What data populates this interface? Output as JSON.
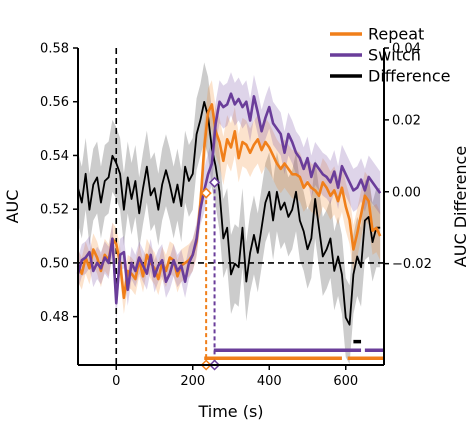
{
  "chart_data": {
    "type": "line",
    "xlabel": "Time (s)",
    "ylabel": "AUC",
    "ylabel_right": "AUC Difference",
    "xlim": [
      -100,
      700
    ],
    "ylim": [
      0.462,
      0.58
    ],
    "ylim_right": [
      -0.0482,
      0.04
    ],
    "x_ticks": [
      0,
      200,
      400,
      600
    ],
    "y_ticks": [
      0.48,
      0.5,
      0.52,
      0.54,
      0.56,
      0.58
    ],
    "y_ticks_right": [
      -0.02,
      0.0,
      0.02,
      0.04
    ],
    "x_tick_labels": [
      "0",
      "200",
      "400",
      "600"
    ],
    "y_tick_labels": [
      "0.48",
      "0.50",
      "0.52",
      "0.54",
      "0.56",
      "0.58"
    ],
    "y_tick_labels_right": [
      "−0.02",
      "0.00",
      "0.02",
      "0.04"
    ],
    "grid": false,
    "legend_position": "top-right",
    "reference_lines": {
      "chance_y": 0.5,
      "stimulus_onset_x": 0
    },
    "series": [
      {
        "name": "Repeat",
        "axis": "left",
        "color": "#f07f1a",
        "x": [
          -100,
          -90,
          -80,
          -70,
          -60,
          -50,
          -40,
          -30,
          -20,
          -10,
          0,
          10,
          20,
          30,
          40,
          50,
          60,
          70,
          80,
          90,
          100,
          110,
          120,
          130,
          140,
          150,
          160,
          170,
          180,
          190,
          200,
          210,
          220,
          230,
          240,
          250,
          260,
          270,
          280,
          290,
          300,
          310,
          320,
          330,
          340,
          350,
          360,
          370,
          380,
          390,
          400,
          410,
          420,
          430,
          440,
          450,
          460,
          470,
          480,
          490,
          500,
          510,
          520,
          530,
          540,
          550,
          560,
          570,
          580,
          590,
          600,
          610,
          620,
          630,
          640,
          650,
          660,
          670,
          680,
          690
        ],
        "y": [
          0.499,
          0.496,
          0.502,
          0.498,
          0.505,
          0.502,
          0.497,
          0.503,
          0.501,
          0.509,
          0.507,
          0.5,
          0.487,
          0.497,
          0.496,
          0.494,
          0.501,
          0.495,
          0.503,
          0.5,
          0.498,
          0.494,
          0.5,
          0.497,
          0.502,
          0.501,
          0.495,
          0.499,
          0.5,
          0.501,
          0.503,
          0.508,
          0.522,
          0.543,
          0.556,
          0.559,
          0.549,
          0.545,
          0.538,
          0.546,
          0.543,
          0.549,
          0.539,
          0.545,
          0.544,
          0.541,
          0.544,
          0.546,
          0.542,
          0.545,
          0.543,
          0.54,
          0.537,
          0.535,
          0.537,
          0.535,
          0.533,
          0.533,
          0.532,
          0.528,
          0.53,
          0.528,
          0.527,
          0.525,
          0.53,
          0.528,
          0.525,
          0.527,
          0.523,
          0.528,
          0.521,
          0.516,
          0.505,
          0.511,
          0.518,
          0.525,
          0.523,
          0.512,
          0.513,
          0.51
        ],
        "band_halfwidth": [
          0.006,
          0.006,
          0.006,
          0.006,
          0.006,
          0.006,
          0.006,
          0.006,
          0.006,
          0.006,
          0.006,
          0.006,
          0.006,
          0.006,
          0.006,
          0.006,
          0.006,
          0.006,
          0.006,
          0.006,
          0.006,
          0.006,
          0.006,
          0.006,
          0.006,
          0.006,
          0.006,
          0.006,
          0.006,
          0.006,
          0.006,
          0.006,
          0.006,
          0.009,
          0.009,
          0.009,
          0.009,
          0.009,
          0.009,
          0.009,
          0.009,
          0.009,
          0.009,
          0.009,
          0.009,
          0.009,
          0.009,
          0.009,
          0.009,
          0.009,
          0.009,
          0.009,
          0.009,
          0.009,
          0.009,
          0.009,
          0.009,
          0.009,
          0.009,
          0.009,
          0.009,
          0.009,
          0.009,
          0.009,
          0.009,
          0.009,
          0.009,
          0.009,
          0.009,
          0.009,
          0.009,
          0.009,
          0.009,
          0.009,
          0.009,
          0.009,
          0.009,
          0.009,
          0.009,
          0.009
        ]
      },
      {
        "name": "Switch",
        "axis": "left",
        "color": "#6a3d9a",
        "x": [
          -100,
          -90,
          -80,
          -70,
          -60,
          -50,
          -40,
          -30,
          -20,
          -10,
          0,
          10,
          20,
          30,
          40,
          50,
          60,
          70,
          80,
          90,
          100,
          110,
          120,
          130,
          140,
          150,
          160,
          170,
          180,
          190,
          200,
          210,
          220,
          230,
          240,
          250,
          260,
          270,
          280,
          290,
          300,
          310,
          320,
          330,
          340,
          350,
          360,
          370,
          380,
          390,
          400,
          410,
          420,
          430,
          440,
          450,
          460,
          470,
          480,
          490,
          500,
          510,
          520,
          530,
          540,
          550,
          560,
          570,
          580,
          590,
          600,
          610,
          620,
          630,
          640,
          650,
          660,
          670,
          680,
          690
        ],
        "y": [
          0.496,
          0.501,
          0.502,
          0.504,
          0.497,
          0.5,
          0.498,
          0.502,
          0.5,
          0.509,
          0.485,
          0.503,
          0.504,
          0.49,
          0.5,
          0.497,
          0.502,
          0.499,
          0.496,
          0.503,
          0.495,
          0.499,
          0.501,
          0.493,
          0.496,
          0.501,
          0.497,
          0.499,
          0.493,
          0.5,
          0.503,
          0.509,
          0.52,
          0.527,
          0.533,
          0.537,
          0.552,
          0.56,
          0.558,
          0.559,
          0.563,
          0.559,
          0.561,
          0.558,
          0.56,
          0.553,
          0.562,
          0.556,
          0.549,
          0.554,
          0.558,
          0.552,
          0.55,
          0.548,
          0.541,
          0.548,
          0.545,
          0.541,
          0.539,
          0.535,
          0.539,
          0.532,
          0.537,
          0.535,
          0.533,
          0.532,
          0.53,
          0.534,
          0.528,
          0.536,
          0.533,
          0.53,
          0.527,
          0.528,
          0.531,
          0.527,
          0.532,
          0.53,
          0.528,
          0.526
        ],
        "band_halfwidth": [
          0.006,
          0.006,
          0.006,
          0.006,
          0.006,
          0.006,
          0.006,
          0.006,
          0.006,
          0.006,
          0.006,
          0.006,
          0.006,
          0.006,
          0.006,
          0.006,
          0.006,
          0.006,
          0.006,
          0.006,
          0.006,
          0.006,
          0.006,
          0.006,
          0.006,
          0.006,
          0.006,
          0.006,
          0.006,
          0.006,
          0.006,
          0.006,
          0.006,
          0.008,
          0.008,
          0.008,
          0.008,
          0.008,
          0.008,
          0.008,
          0.008,
          0.008,
          0.008,
          0.008,
          0.008,
          0.008,
          0.008,
          0.008,
          0.008,
          0.008,
          0.008,
          0.008,
          0.008,
          0.008,
          0.008,
          0.008,
          0.008,
          0.008,
          0.008,
          0.008,
          0.008,
          0.008,
          0.008,
          0.008,
          0.008,
          0.008,
          0.008,
          0.008,
          0.008,
          0.008,
          0.008,
          0.008,
          0.008,
          0.008,
          0.008,
          0.008,
          0.008,
          0.008,
          0.008,
          0.008
        ]
      },
      {
        "name": "Difference",
        "axis": "right",
        "color": "#000000",
        "x": [
          -100,
          -90,
          -80,
          -70,
          -60,
          -50,
          -40,
          -30,
          -20,
          -10,
          0,
          10,
          20,
          30,
          40,
          50,
          60,
          70,
          80,
          90,
          100,
          110,
          120,
          130,
          140,
          150,
          160,
          170,
          180,
          190,
          200,
          210,
          220,
          230,
          240,
          250,
          260,
          270,
          280,
          290,
          300,
          310,
          320,
          330,
          340,
          350,
          360,
          370,
          380,
          390,
          400,
          410,
          420,
          430,
          440,
          450,
          460,
          470,
          480,
          490,
          500,
          510,
          520,
          530,
          540,
          550,
          560,
          570,
          580,
          590,
          600,
          610,
          620,
          630,
          640,
          650,
          660,
          670,
          680,
          690
        ],
        "y": [
          0.001,
          -0.003,
          0.005,
          -0.005,
          0.002,
          0.004,
          -0.003,
          0.003,
          0.004,
          0.01,
          0.008,
          0.005,
          -0.005,
          0.004,
          -0.002,
          0.003,
          -0.006,
          0.001,
          0.007,
          -0.001,
          0.001,
          -0.005,
          0.002,
          0.006,
          0.002,
          -0.003,
          0.002,
          -0.004,
          0.007,
          0.003,
          0.005,
          0.016,
          0.02,
          0.025,
          0.021,
          0.012,
          0.007,
          0.0,
          -0.013,
          -0.01,
          -0.023,
          -0.02,
          -0.021,
          -0.01,
          -0.025,
          -0.017,
          -0.012,
          -0.017,
          -0.01,
          -0.003,
          0.0,
          -0.008,
          0.0,
          -0.005,
          -0.003,
          -0.007,
          -0.005,
          0.0,
          -0.008,
          -0.011,
          -0.016,
          -0.013,
          -0.002,
          -0.01,
          -0.018,
          -0.016,
          -0.013,
          -0.022,
          -0.018,
          -0.023,
          -0.035,
          -0.037,
          -0.023,
          -0.018,
          -0.021,
          -0.008,
          -0.007,
          -0.014,
          -0.01,
          -0.01
        ],
        "band_halfwidth": [
          0.01,
          0.01,
          0.01,
          0.01,
          0.01,
          0.01,
          0.01,
          0.01,
          0.01,
          0.01,
          0.01,
          0.01,
          0.01,
          0.01,
          0.01,
          0.01,
          0.01,
          0.01,
          0.01,
          0.01,
          0.01,
          0.01,
          0.01,
          0.01,
          0.01,
          0.01,
          0.01,
          0.01,
          0.01,
          0.01,
          0.01,
          0.01,
          0.01,
          0.011,
          0.011,
          0.011,
          0.011,
          0.011,
          0.011,
          0.011,
          0.011,
          0.011,
          0.011,
          0.011,
          0.011,
          0.011,
          0.011,
          0.011,
          0.011,
          0.011,
          0.011,
          0.011,
          0.011,
          0.011,
          0.011,
          0.011,
          0.011,
          0.011,
          0.011,
          0.011,
          0.011,
          0.011,
          0.011,
          0.011,
          0.011,
          0.011,
          0.011,
          0.011,
          0.011,
          0.011,
          0.011,
          0.011,
          0.011,
          0.011,
          0.011,
          0.011,
          0.011,
          0.011,
          0.011,
          0.011
        ]
      }
    ],
    "markers": [
      {
        "series": "Repeat",
        "x": 235,
        "y": 0.526
      },
      {
        "series": "Switch",
        "x": 257,
        "y": 0.53
      }
    ],
    "significance_bars": [
      {
        "series": "Repeat",
        "y": 0.4645,
        "segments": [
          [
            230,
            590
          ],
          [
            605,
            700
          ]
        ]
      },
      {
        "series": "Switch",
        "y": 0.4675,
        "segments": [
          [
            255,
            640
          ],
          [
            650,
            700
          ]
        ]
      },
      {
        "series": "Difference",
        "y": 0.4707,
        "segments": [
          [
            620,
            640
          ]
        ]
      }
    ]
  }
}
